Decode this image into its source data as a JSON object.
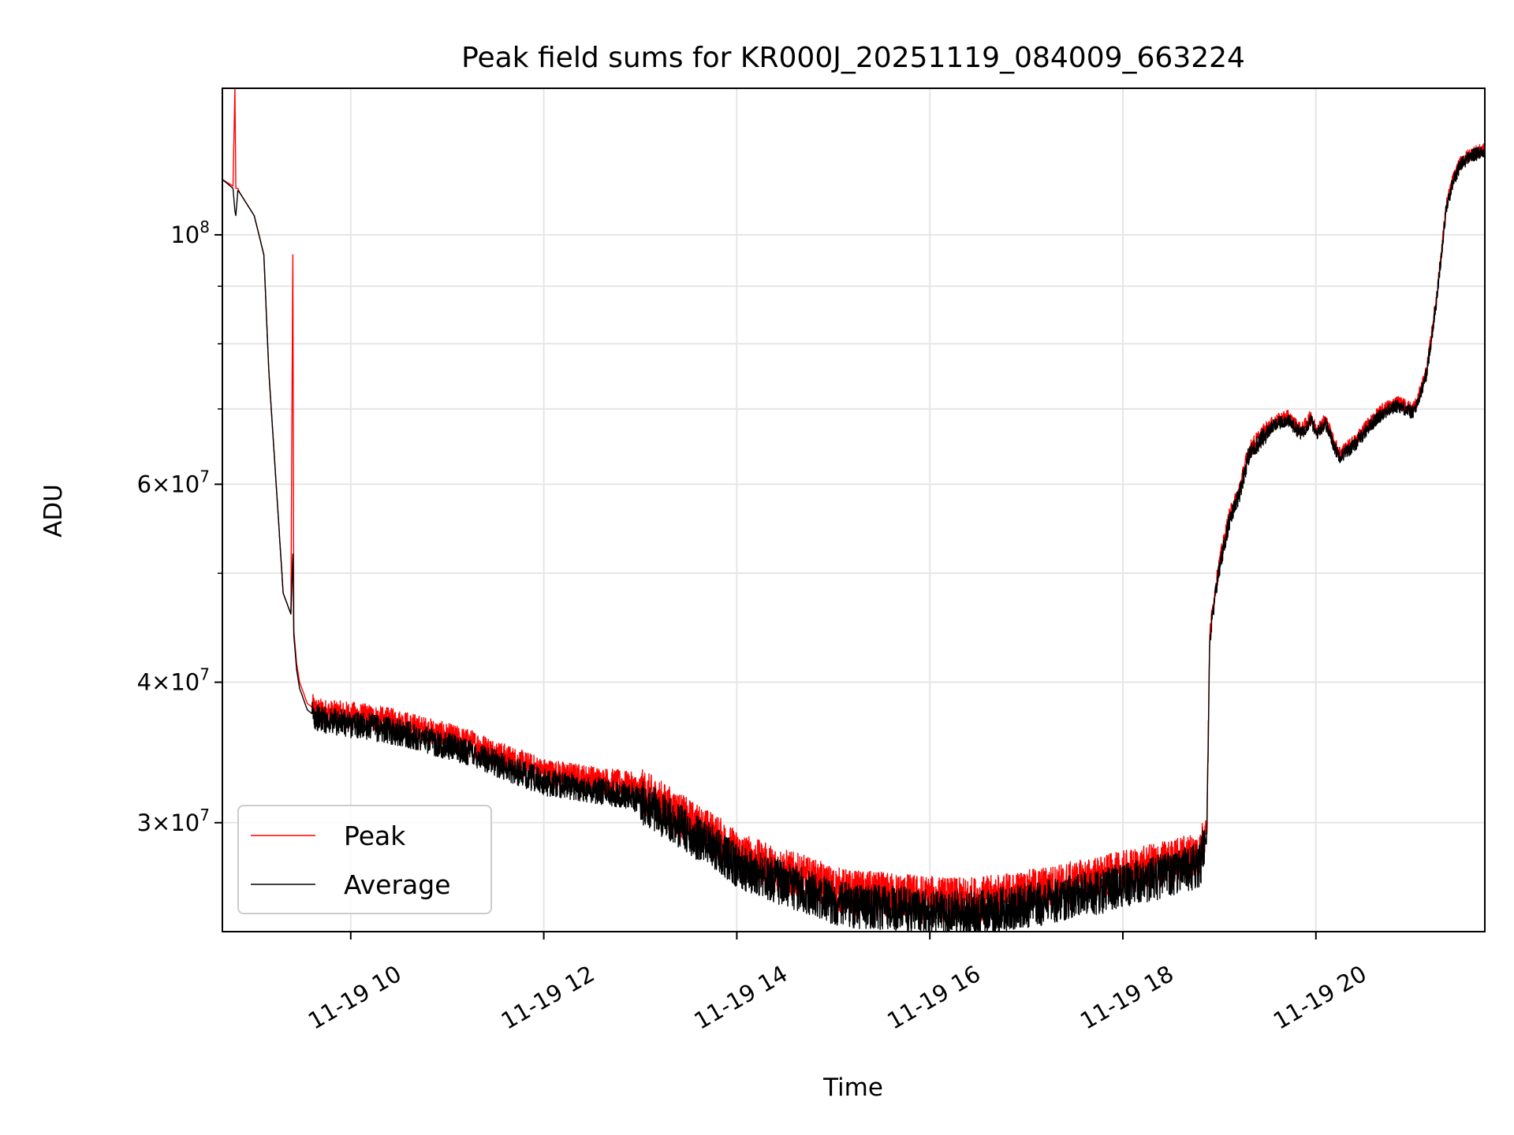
{
  "chart_data": {
    "type": "line",
    "title": "Peak field sums for KR000J_20251119_084009_663224",
    "xlabel": "Time",
    "ylabel": "ADU",
    "yscale": "log",
    "xlim": [
      8.67,
      21.75
    ],
    "ylim": [
      24000000,
      135000000
    ],
    "grid": true,
    "legend_location": "lower-left",
    "x_ticks": [
      {
        "value": 10,
        "label": "11-19 10"
      },
      {
        "value": 12,
        "label": "11-19 12"
      },
      {
        "value": 14,
        "label": "11-19 14"
      },
      {
        "value": 16,
        "label": "11-19 16"
      },
      {
        "value": 18,
        "label": "11-19 18"
      },
      {
        "value": 20,
        "label": "11-19 20"
      }
    ],
    "y_ticks": [
      {
        "value": 30000000,
        "label": "3×10",
        "exp": "7"
      },
      {
        "value": 40000000,
        "label": "4×10",
        "exp": "7"
      },
      {
        "value": 60000000,
        "label": "6×10",
        "exp": "7"
      },
      {
        "value": 100000000,
        "label": "10",
        "exp": "8"
      }
    ],
    "y_minor_ticks": [
      50000000,
      70000000,
      80000000,
      90000000
    ],
    "series": [
      {
        "name": "Peak",
        "color": "#ff0000",
        "x": [
          8.67,
          8.78,
          8.8,
          8.81,
          8.83,
          8.85,
          9.0,
          9.1,
          9.15,
          9.25,
          9.3,
          9.38,
          9.4,
          9.41,
          9.42,
          9.43,
          9.44,
          9.47,
          9.55,
          9.65,
          9.8,
          10.0,
          10.2,
          10.5,
          10.8,
          11.0,
          11.3,
          11.6,
          12.0,
          12.4,
          12.9,
          13.2,
          13.5,
          13.8,
          14.0,
          14.3,
          14.7,
          15.0,
          15.2,
          15.5,
          15.8,
          16.0,
          16.3,
          16.6,
          17.0,
          17.4,
          17.8,
          18.2,
          18.5,
          18.8,
          18.87,
          18.9,
          18.93,
          19.0,
          19.1,
          19.2,
          19.3,
          19.35,
          19.45,
          19.55,
          19.7,
          19.85,
          19.95,
          20.0,
          20.1,
          20.2,
          20.25,
          20.4,
          20.55,
          20.7,
          20.85,
          21.0,
          21.05,
          21.15,
          21.25,
          21.35,
          21.42,
          21.5,
          21.6,
          21.75
        ],
        "y": [
          112000000,
          110500000,
          135000000,
          110000000,
          110000000,
          109000000,
          104000000,
          96000000,
          76000000,
          56000000,
          48000000,
          46000000,
          96000000,
          44500000,
          43500000,
          42500000,
          41500000,
          40000000,
          38300000,
          37700000,
          37500000,
          37400000,
          37200000,
          36800000,
          36200000,
          35800000,
          35200000,
          34300000,
          33300000,
          32900000,
          32400000,
          31300000,
          30100000,
          29100000,
          28200000,
          27500000,
          26800000,
          26200000,
          26000000,
          25900000,
          25800000,
          25700000,
          25600000,
          25700000,
          26000000,
          26400000,
          26800000,
          27300000,
          27700000,
          28200000,
          30000000,
          44000000,
          46500000,
          51000000,
          56000000,
          59000000,
          64000000,
          65000000,
          66500000,
          68000000,
          69000000,
          67000000,
          69000000,
          67000000,
          68500000,
          65000000,
          64000000,
          65500000,
          68000000,
          70000000,
          71000000,
          70000000,
          71000000,
          76000000,
          88000000,
          106000000,
          112000000,
          116000000,
          118000000,
          119000000
        ]
      },
      {
        "name": "Average",
        "color": "#000000",
        "x": [
          8.67,
          8.78,
          8.8,
          8.81,
          8.83,
          8.85,
          9.0,
          9.1,
          9.15,
          9.25,
          9.3,
          9.38,
          9.4,
          9.41,
          9.42,
          9.43,
          9.44,
          9.47,
          9.55,
          9.65,
          9.8,
          10.0,
          10.2,
          10.5,
          10.8,
          11.0,
          11.3,
          11.6,
          12.0,
          12.4,
          12.9,
          13.2,
          13.5,
          13.8,
          14.0,
          14.3,
          14.7,
          15.0,
          15.2,
          15.5,
          15.8,
          16.0,
          16.3,
          16.6,
          17.0,
          17.4,
          17.8,
          18.2,
          18.5,
          18.8,
          18.87,
          18.9,
          18.93,
          19.0,
          19.1,
          19.2,
          19.3,
          19.35,
          19.45,
          19.55,
          19.7,
          19.85,
          19.95,
          20.0,
          20.1,
          20.2,
          20.25,
          20.4,
          20.55,
          20.7,
          20.85,
          21.0,
          21.05,
          21.15,
          21.25,
          21.35,
          21.42,
          21.5,
          21.6,
          21.75
        ],
        "y": [
          112000000,
          110000000,
          105000000,
          104000000,
          109500000,
          109000000,
          104000000,
          96000000,
          76000000,
          56000000,
          48000000,
          46000000,
          52000000,
          44000000,
          43000000,
          42000000,
          41000000,
          39500000,
          37800000,
          37200000,
          36900000,
          36700000,
          36500000,
          36100000,
          35500000,
          35100000,
          34500000,
          33600000,
          32600000,
          32200000,
          31700000,
          30600000,
          29400000,
          28400000,
          27500000,
          26800000,
          26100000,
          25500000,
          25300000,
          25200000,
          25100000,
          25000000,
          24900000,
          25000000,
          25300000,
          25700000,
          26100000,
          26600000,
          27000000,
          27500000,
          29300000,
          43500000,
          46000000,
          50500000,
          55500000,
          58500000,
          63500000,
          64500000,
          66000000,
          67500000,
          68500000,
          66500000,
          68500000,
          66500000,
          68000000,
          64500000,
          63500000,
          65000000,
          67500000,
          69500000,
          70500000,
          69500000,
          70500000,
          75500000,
          87500000,
          105500000,
          111500000,
          115500000,
          117500000,
          118500000
        ]
      }
    ]
  }
}
